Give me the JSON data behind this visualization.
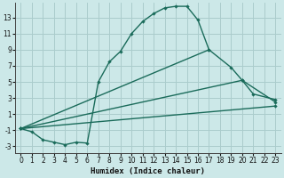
{
  "xlabel": "Humidex (Indice chaleur)",
  "bg_color": "#cce8e8",
  "grid_color": "#aacccc",
  "line_color": "#1a6b5a",
  "xlim": [
    -0.5,
    23.5
  ],
  "ylim": [
    -3.8,
    14.8
  ],
  "xticks": [
    0,
    1,
    2,
    3,
    4,
    5,
    6,
    7,
    8,
    9,
    10,
    11,
    12,
    13,
    14,
    15,
    16,
    17,
    18,
    19,
    20,
    21,
    22,
    23
  ],
  "yticks": [
    -3,
    -1,
    1,
    3,
    5,
    7,
    9,
    11,
    13
  ],
  "line1_x": [
    0,
    1,
    2,
    3,
    4,
    5,
    6,
    7,
    8,
    9,
    10,
    11,
    12,
    13,
    14,
    15,
    16,
    17
  ],
  "line1_y": [
    -0.8,
    -1.2,
    -2.2,
    -2.5,
    -2.8,
    -2.5,
    -2.6,
    5.0,
    7.5,
    8.8,
    11.0,
    12.5,
    13.5,
    14.2,
    14.4,
    14.4,
    12.7,
    9.0
  ],
  "line2_x": [
    0,
    17,
    19,
    20,
    21,
    23
  ],
  "line2_y": [
    -0.8,
    9.0,
    6.8,
    5.2,
    3.5,
    2.8
  ],
  "line3_x": [
    0,
    20,
    23
  ],
  "line3_y": [
    -0.8,
    5.2,
    2.5
  ],
  "line4_x": [
    0,
    23
  ],
  "line4_y": [
    -0.8,
    2.0
  ]
}
